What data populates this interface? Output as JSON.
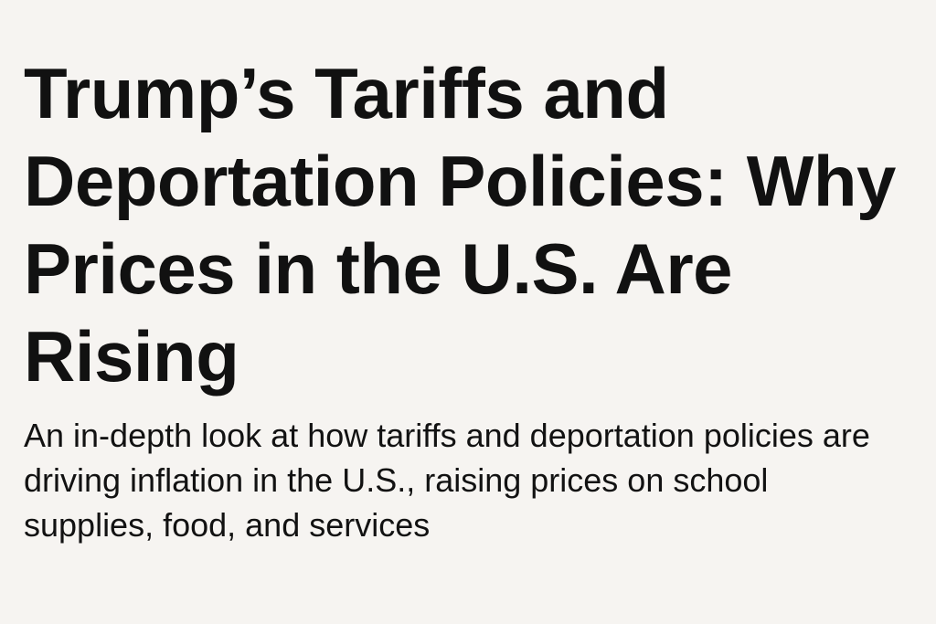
{
  "article": {
    "headline": "Trump’s Tariffs and Deportation Policies: Why Prices in the U.S. Are Rising",
    "subheadline": "An in-depth look at how tariffs and deportation policies are driving inflation in the U.S., raising prices on school supplies, food, and services"
  },
  "colors": {
    "background": "#f6f4f1",
    "text": "#111111"
  }
}
